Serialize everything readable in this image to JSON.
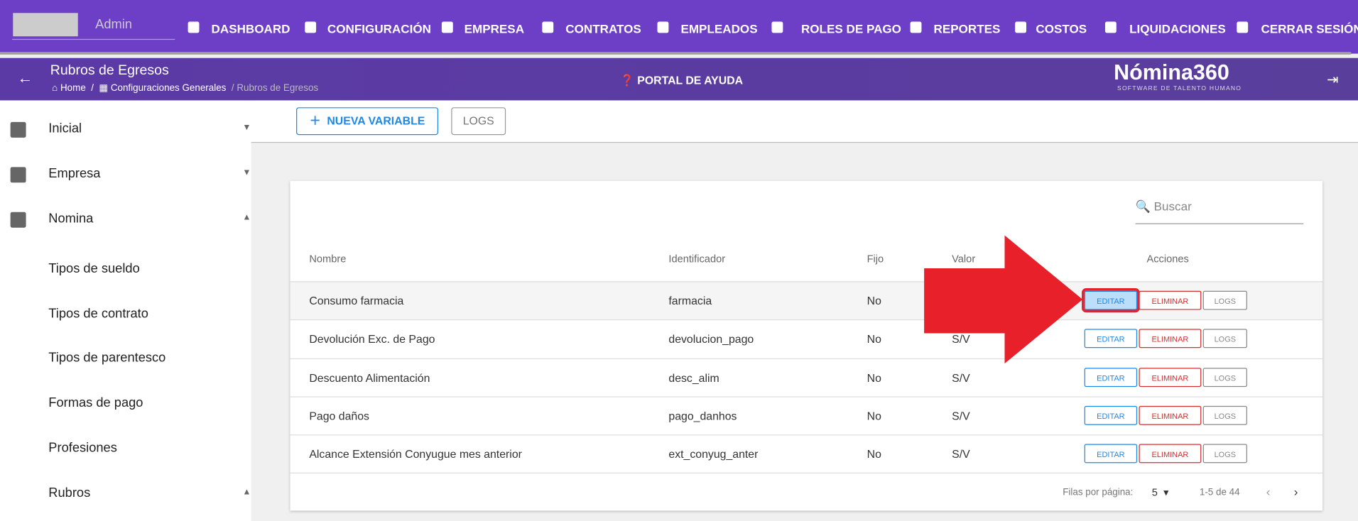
{
  "user": {
    "role": "Admin"
  },
  "nav": [
    "DASHBOARD",
    "CONFIGURACIÓN",
    "EMPRESA",
    "CONTRATOS",
    "EMPLEADOS",
    "ROLES DE PAGO",
    "REPORTES",
    "COSTOS",
    "LIQUIDACIONES",
    "CERRAR SESIÓN"
  ],
  "header": {
    "title": "Rubros de Egresos",
    "breadcrumbs": [
      "Home",
      "Configuraciones Generales",
      "Rubros de Egresos"
    ],
    "help": "PORTAL DE AYUDA",
    "brand": "Nómina360",
    "brand_sub": "SOFTWARE DE TALENTO HUMANO"
  },
  "sidebar": {
    "groups": [
      "Inicial",
      "Empresa",
      "Nomina"
    ],
    "items": [
      "Tipos de sueldo",
      "Tipos de contrato",
      "Tipos de parentesco",
      "Formas de pago",
      "Profesiones",
      "Rubros"
    ]
  },
  "toolbar": {
    "new": "NUEVA VARIABLE",
    "logs": "LOGS"
  },
  "table": {
    "search": "Buscar",
    "columns": [
      "Nombre",
      "Identificador",
      "Fijo",
      "Valor",
      "Acciones"
    ],
    "rows": [
      {
        "nombre": "Consumo farmacia",
        "identificador": "farmacia",
        "fijo": "No"
      },
      {
        "nombre": "Devolución Exc. de Pago",
        "identificador": "devolucion_pago",
        "fijo": "No",
        "valor": "S/V"
      },
      {
        "nombre": "Descuento Alimentación",
        "identificador": "desc_alim",
        "fijo": "No",
        "valor": "S/V"
      },
      {
        "nombre": "Pago daños",
        "identificador": "pago_danhos",
        "fijo": "No",
        "valor": "S/V"
      },
      {
        "nombre": "Alcance Extensión Conyugue mes anterior",
        "identificador": "ext_conyug_anter",
        "fijo": "No",
        "valor": "S/V"
      }
    ],
    "actions": [
      "EDITAR",
      "ELIMINAR",
      "LOGS"
    ],
    "pagination": {
      "label": "Filas por página:",
      "per_page": "5",
      "range": "1-5 de 44"
    }
  }
}
